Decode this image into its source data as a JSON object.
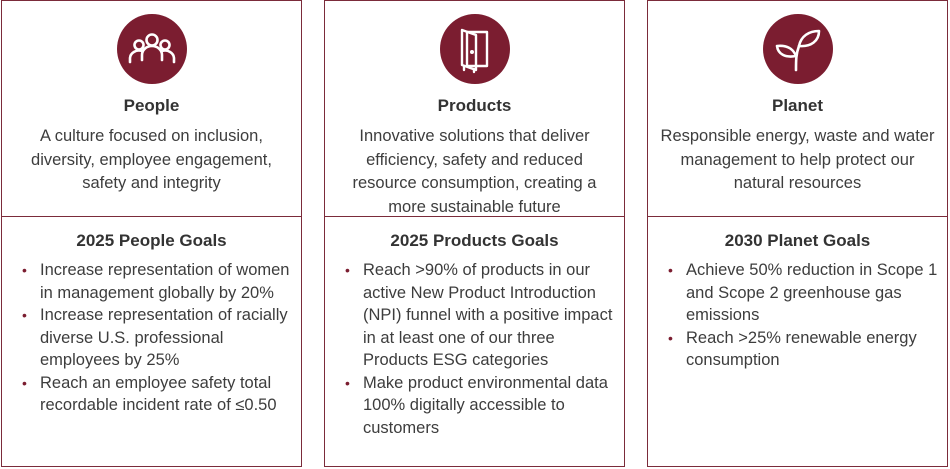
{
  "colors": {
    "accent": "#7b1d30",
    "border": "#7b2b3a",
    "text": "#3d3d3d"
  },
  "pillars": [
    {
      "icon": "people-icon",
      "title": "People",
      "description": "A culture focused on inclusion, diversity, employee engagement, safety and integrity",
      "goals_title": "2025 People Goals",
      "goals": [
        "Increase representation of women in management globally by 20%",
        "Increase representation of racially diverse U.S. professional employees by 25%",
        "Reach an employee safety total recordable incident rate of ≤0.50"
      ]
    },
    {
      "icon": "door-icon",
      "title": "Products",
      "description": "Innovative solutions that deliver efficiency, safety and reduced resource consumption, creating a more sustainable future",
      "goals_title": "2025 Products Goals",
      "goals": [
        "Reach >90% of products in our active New Product Introduction (NPI) funnel with a positive impact in at least one of our three Products ESG categories",
        "Make product environmental data 100% digitally accessible to customers"
      ]
    },
    {
      "icon": "sprout-icon",
      "title": "Planet",
      "description": "Responsible energy, waste and water management to help protect our natural resources",
      "goals_title": "2030 Planet Goals",
      "goals": [
        "Achieve 50% reduction in Scope 1 and Scope 2 greenhouse gas emissions",
        "Reach >25% renewable energy consumption"
      ]
    }
  ]
}
